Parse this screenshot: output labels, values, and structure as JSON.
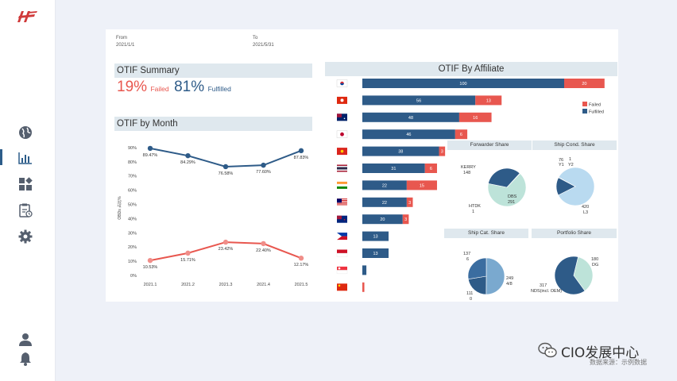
{
  "sidebar": {
    "nav": [
      {
        "name": "globe-icon"
      },
      {
        "name": "bar-chart-icon"
      },
      {
        "name": "widgets-icon"
      },
      {
        "name": "clipboard-icon"
      },
      {
        "name": "gear-icon"
      }
    ],
    "bottom": [
      {
        "name": "user-icon"
      },
      {
        "name": "bell-icon"
      }
    ]
  },
  "filters": {
    "from_label": "From",
    "from_value": "2021/1/1",
    "to_label": "To",
    "to_value": "2021/5/31"
  },
  "summary": {
    "title": "OTIF Summary",
    "failed_pct": "19%",
    "failed_label": "Failed",
    "fulfilled_pct": "81%",
    "fulfilled_label": "Fulfilled"
  },
  "colors": {
    "failed": "#e8574f",
    "fulfilled": "#2e5b88",
    "header_bg": "#dfe8ee",
    "pie_light": "#bde3d9",
    "pie_blue_light": "#b9daf0",
    "pie_mid": "#7aa9cf"
  },
  "month_chart": {
    "title": "OTIF by Month",
    "ylabel": "OBDs 占比%",
    "y_ticks": [
      "0%",
      "10%",
      "20%",
      "30%",
      "40%",
      "50%",
      "60%",
      "70%",
      "80%",
      "90%"
    ],
    "x_labels": [
      "2021.1",
      "2021.2",
      "2021.3",
      "2021.4",
      "2021.5"
    ],
    "chart_data": {
      "type": "line",
      "title": "OTIF by Month",
      "categories": [
        "2021.1",
        "2021.2",
        "2021.3",
        "2021.4",
        "2021.5"
      ],
      "ylim": [
        0,
        95
      ],
      "series": [
        {
          "name": "Fulfilled",
          "values": [
            89.47,
            84.29,
            76.58,
            77.6,
            87.83
          ],
          "labels": [
            "89.47%",
            "84.29%",
            "76.58%",
            "77.60%",
            "87.83%"
          ]
        },
        {
          "name": "Failed",
          "values": [
            10.53,
            15.71,
            23.42,
            22.4,
            12.17
          ],
          "labels": [
            "10.53%",
            "15.71%",
            "23.42%",
            "22.40%",
            "12.17%"
          ]
        }
      ]
    }
  },
  "affiliate_chart": {
    "title": "OTIF By Affiliate",
    "legend": [
      "Failed",
      "Fulfilled"
    ],
    "chart_data": {
      "type": "bar",
      "orientation": "horizontal",
      "stacked": true,
      "categories": [
        "South Korea",
        "Hong Kong",
        "Australia",
        "Japan",
        "Vietnam",
        "Thailand",
        "India",
        "Malaysia",
        "New Zealand",
        "Philippines",
        "Indonesia",
        "Singapore",
        "China"
      ],
      "series": [
        {
          "name": "Fulfilled",
          "values": [
            100,
            56,
            48,
            46,
            38,
            31,
            22,
            22,
            20,
            13,
            13,
            2,
            0
          ]
        },
        {
          "name": "Failed",
          "values": [
            20,
            13,
            16,
            6,
            3,
            6,
            15,
            3,
            3,
            0,
            0,
            0,
            1
          ]
        }
      ],
      "shown_labels": {
        "Fulfilled": [
          "100",
          "56",
          "48",
          "46",
          "38",
          "31",
          "22",
          "22",
          "20",
          "13",
          "13",
          "",
          ""
        ],
        "Failed": [
          "20",
          "13",
          "16",
          "6",
          "3",
          "6",
          "15",
          "3",
          "3",
          "",
          "",
          "",
          ""
        ]
      }
    }
  },
  "pies": {
    "chart_data": [
      {
        "type": "pie",
        "title": "Forwarder Share",
        "slices": [
          {
            "label": "DBS",
            "value": 291
          },
          {
            "label": "KERRY",
            "value": 148
          },
          {
            "label": "HTDK",
            "value": 1
          }
        ],
        "annotations": [
          {
            "label": "KERRY",
            "value": "148"
          },
          {
            "label": "DBS",
            "value": "291"
          },
          {
            "label": "HTDK",
            "value": "1"
          }
        ]
      },
      {
        "type": "pie",
        "title": "Ship Cond. Share",
        "slices": [
          {
            "label": "L3",
            "value": 420
          },
          {
            "label": "Y1",
            "value": 76
          },
          {
            "label": "Y2",
            "value": 1
          }
        ],
        "annotations": [
          {
            "label": "Y1",
            "value": "76"
          },
          {
            "label": "Y2",
            "value": "1"
          },
          {
            "label": "L3",
            "value": "420"
          }
        ]
      },
      {
        "type": "pie",
        "title": "Ship Cat. Share",
        "slices": [
          {
            "label": "4/8",
            "value": 249
          },
          {
            "label": "0",
            "value": 111
          },
          {
            "label": "6",
            "value": 137
          }
        ],
        "annotations": [
          {
            "label": "6",
            "value": "137"
          },
          {
            "label": "4/8",
            "value": "249"
          },
          {
            "label": "0",
            "value": "111"
          }
        ]
      },
      {
        "type": "pie",
        "title": "Portfolio Share",
        "slices": [
          {
            "label": "NDS(incl. OEM)",
            "value": 317
          },
          {
            "label": "DG",
            "value": 180
          }
        ],
        "annotations": [
          {
            "label": "DG",
            "value": "180"
          },
          {
            "label": "NDS(incl. OEM)",
            "value": "317"
          }
        ]
      }
    ]
  },
  "watermark": {
    "title": "CIO发展中心",
    "subtitle": "数据来源：示例数据"
  }
}
